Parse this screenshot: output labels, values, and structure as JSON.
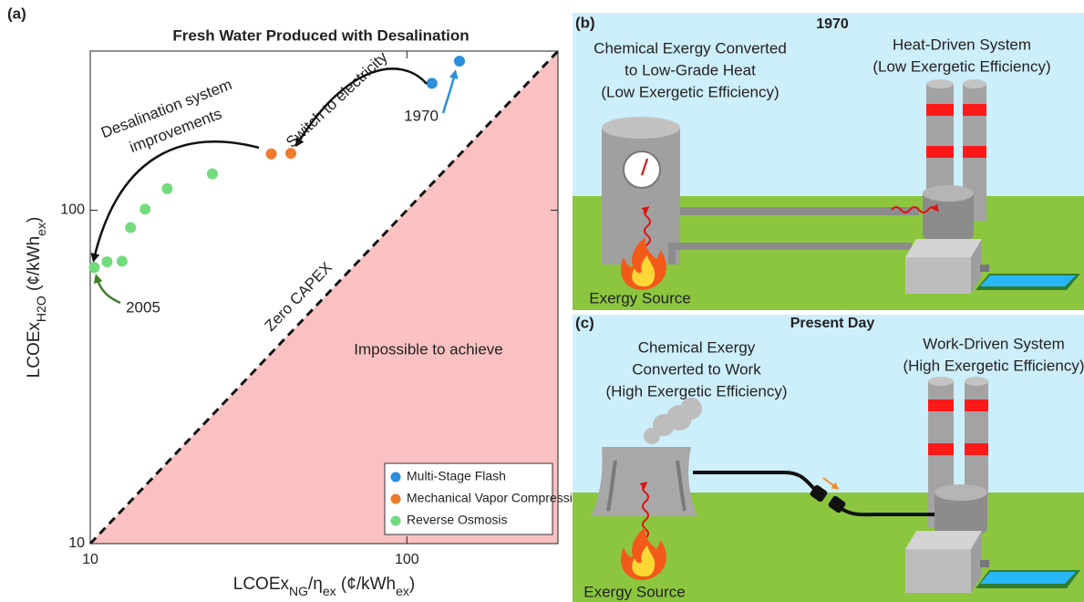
{
  "chart_data": {
    "type": "scatter",
    "panel_label": "(a)",
    "title": "Fresh Water Produced with Desalination",
    "xlabel": [
      {
        "text": "LCOEx"
      },
      {
        "text": "NG",
        "sub": true
      },
      {
        "text": "/η"
      },
      {
        "text": "ex",
        "sub": true
      },
      {
        "text": " (¢/kWh"
      },
      {
        "text": "ex",
        "sub": true
      },
      {
        "text": ")"
      }
    ],
    "ylabel": [
      {
        "text": "LCOEx"
      },
      {
        "text": "H2O",
        "sub": true
      },
      {
        "text": " (¢/kWh"
      },
      {
        "text": "ex",
        "sub": true
      },
      {
        "text": ")"
      }
    ],
    "log_x": true,
    "log_y": true,
    "xlim": [
      10,
      300
    ],
    "ylim": [
      10,
      300
    ],
    "xticks": [
      10,
      100
    ],
    "yticks": [
      10,
      100
    ],
    "legend": "lower right",
    "region_color": "#f9c1c1",
    "series": [
      {
        "name": "Multi-Stage Flash",
        "color": "#2b8fdb",
        "x": [
          146.6,
          120
        ],
        "y": [
          280,
          240
        ]
      },
      {
        "name": "Mechanical Vapor Compression",
        "color": "#f07a2e",
        "x": [
          37.3,
          43
        ],
        "y": [
          147.5,
          148
        ]
      },
      {
        "name": "Reverse Osmosis",
        "color": "#72db7e",
        "x": [
          24.3,
          17.5,
          14.9,
          13.4,
          12.6,
          11.3,
          10.3
        ],
        "y": [
          128.5,
          116,
          100.7,
          88.7,
          70.3,
          70,
          67.3
        ]
      }
    ],
    "annotations": [
      {
        "text": "Switch to electricity",
        "color": "#222222"
      },
      {
        "text": "Desalination system",
        "color": "#222222"
      },
      {
        "text": "improvements",
        "color": "#222222"
      },
      {
        "text": "1970",
        "color": "#2b8fdb"
      },
      {
        "text": "2005",
        "color": "#3f7f2a"
      },
      {
        "text": "Zero CAPEX",
        "color": "#111111"
      },
      {
        "text": "Impossible to achieve",
        "color": "#d10a0a"
      }
    ]
  },
  "panels": [
    {
      "label": "(b)",
      "title": "1970",
      "left_caption": [
        "Chemical Exergy Converted",
        "to Low-Grade Heat",
        "(Low Exergetic Efficiency)"
      ],
      "right_caption": [
        "Heat-Driven System",
        "(Low Exergetic Efficiency)"
      ],
      "source": "Exergy Source"
    },
    {
      "label": "(c)",
      "title": "Present Day",
      "left_caption": [
        "Chemical Exergy",
        "Converted to Work",
        "(High Exergetic Efficiency)"
      ],
      "right_caption": [
        "Work-Driven System",
        "(High Exergetic Efficiency)"
      ],
      "source": "Exergy Source"
    }
  ]
}
